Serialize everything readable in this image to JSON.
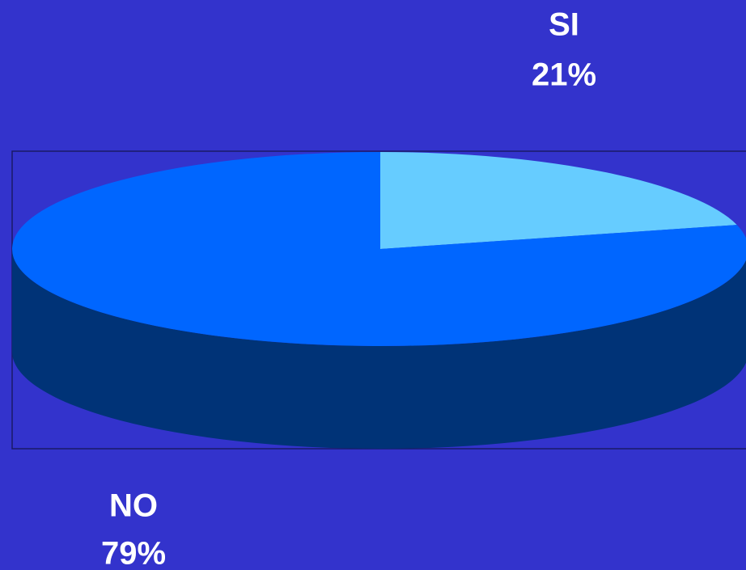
{
  "chart_data": {
    "type": "pie",
    "three_d": true,
    "categories": [
      "SI",
      "NO"
    ],
    "values": [
      21,
      79
    ],
    "value_labels": [
      "21%",
      "79%"
    ],
    "colors": [
      "#66ccff",
      "#0066ff"
    ],
    "depth_colors": [
      "#224488",
      "#003377"
    ]
  }
}
